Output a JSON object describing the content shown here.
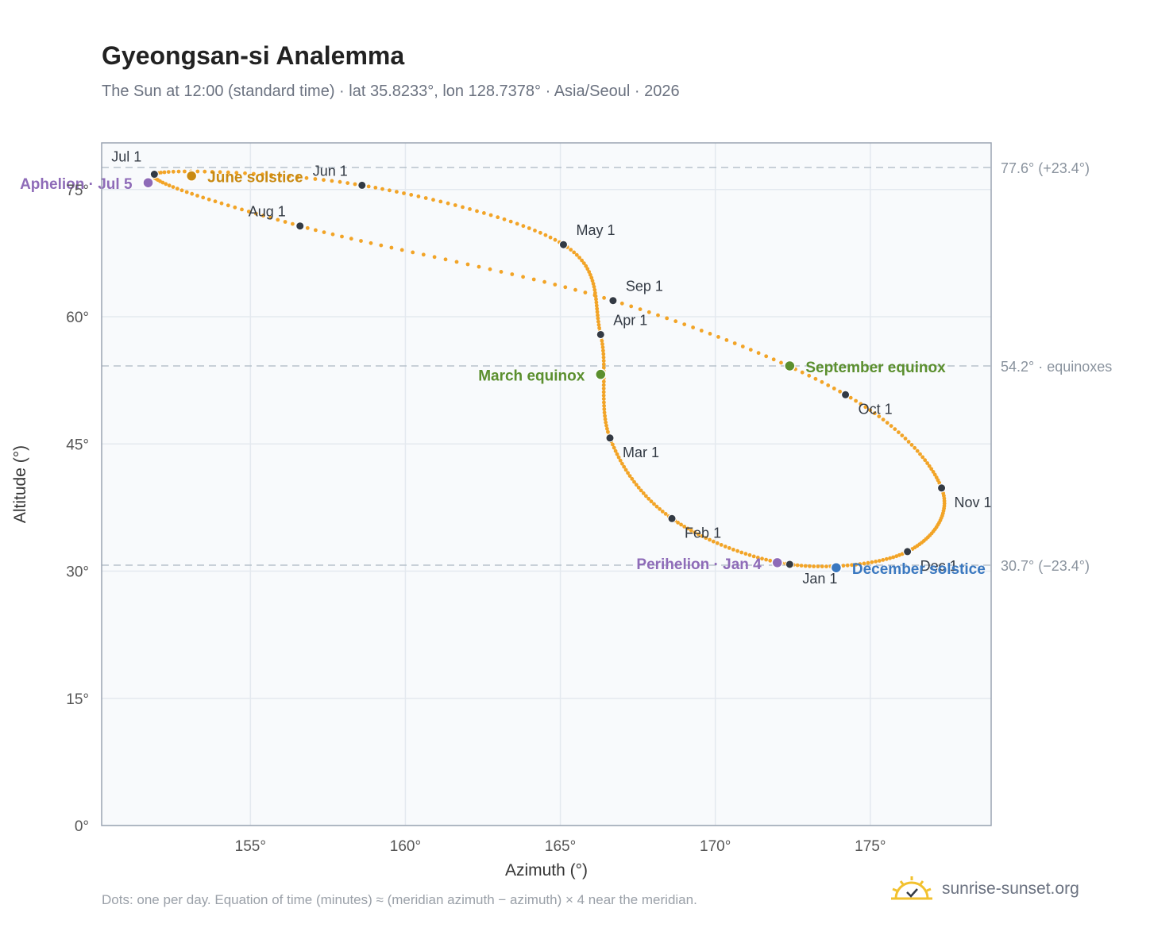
{
  "title": "Gyeongsan-si Analemma",
  "subtitle": "The Sun at 12:00 (standard time) · lat 35.8233°, lon 128.7378° · Asia/Seoul · 2026",
  "footnote": "Dots: one per day. Equation of time (minutes) ≈ (meridian azimuth − azimuth) × 4 near the meridian.",
  "brand": {
    "name": "sunrise-sunset.org",
    "icon": "sun-logo-icon"
  },
  "colors": {
    "curve": "#f2a427",
    "month_marker": "#333a44",
    "equinox": "#5b8f2e",
    "june_solstice": "#c98a12",
    "december_solstice": "#3a78c0",
    "apsides": "#8e6bb8",
    "reference_line": "#b7c2cc",
    "plot_background": "#f8fafc",
    "grid": "#e4e9ef",
    "axis_border": "#9aa4b2"
  },
  "chart_data": {
    "type": "scatter",
    "xlabel": "Azimuth (°)",
    "ylabel": "Altitude (°)",
    "xlim": [
      150.2,
      178.9
    ],
    "ylim": [
      0,
      80.5
    ],
    "xticks": [
      "155°",
      "160°",
      "165°",
      "170°",
      "175°"
    ],
    "xtick_values": [
      155,
      160,
      165,
      170,
      175
    ],
    "yticks": [
      "0°",
      "15°",
      "30°",
      "45°",
      "60°",
      "75°"
    ],
    "ytick_values": [
      0,
      15,
      30,
      45,
      60,
      75
    ],
    "grid": true,
    "monthly_points": [
      {
        "label": "Jan 1",
        "date": "2026-01-01",
        "azimuth": 172.4,
        "altitude": 30.8
      },
      {
        "label": "Feb 1",
        "date": "2026-02-01",
        "azimuth": 168.6,
        "altitude": 36.2
      },
      {
        "label": "Mar 1",
        "date": "2026-03-01",
        "azimuth": 166.6,
        "altitude": 45.7
      },
      {
        "label": "Apr 1",
        "date": "2026-04-01",
        "azimuth": 166.3,
        "altitude": 57.9
      },
      {
        "label": "May 1",
        "date": "2026-05-01",
        "azimuth": 165.1,
        "altitude": 68.5
      },
      {
        "label": "Jun 1",
        "date": "2026-06-01",
        "azimuth": 158.6,
        "altitude": 75.5
      },
      {
        "label": "Jul 1",
        "date": "2026-07-01",
        "azimuth": 151.9,
        "altitude": 76.8
      },
      {
        "label": "Aug 1",
        "date": "2026-08-01",
        "azimuth": 156.6,
        "altitude": 70.7
      },
      {
        "label": "Sep 1",
        "date": "2026-09-01",
        "azimuth": 166.7,
        "altitude": 61.9
      },
      {
        "label": "Oct 1",
        "date": "2026-10-01",
        "azimuth": 174.2,
        "altitude": 50.8
      },
      {
        "label": "Nov 1",
        "date": "2026-11-01",
        "azimuth": 177.3,
        "altitude": 39.8
      },
      {
        "label": "Dec 1",
        "date": "2026-12-01",
        "azimuth": 176.2,
        "altitude": 32.3
      }
    ],
    "events": [
      {
        "label": "March equinox",
        "date": "2026-03-20",
        "azimuth": 166.3,
        "altitude": 53.2,
        "color_key": "equinox"
      },
      {
        "label": "June solstice",
        "date": "2026-06-21",
        "azimuth": 153.1,
        "altitude": 76.6,
        "color_key": "june_solstice"
      },
      {
        "label": "Aphelion · Jul 5",
        "date": "2026-07-05",
        "azimuth": 151.7,
        "altitude": 75.8,
        "color_key": "apsides"
      },
      {
        "label": "September equinox",
        "date": "2026-09-23",
        "azimuth": 172.4,
        "altitude": 54.2,
        "color_key": "equinox"
      },
      {
        "label": "December solstice",
        "date": "2026-12-21",
        "azimuth": 173.9,
        "altitude": 30.4,
        "color_key": "december_solstice"
      },
      {
        "label": "Perihelion · Jan 4",
        "date": "2026-01-04",
        "azimuth": 172.0,
        "altitude": 31.0,
        "color_key": "apsides"
      }
    ],
    "reference_lines": [
      {
        "altitude": 77.6,
        "label": "77.6° (+23.4°)"
      },
      {
        "altitude": 54.2,
        "label": "54.2° · equinoxes"
      },
      {
        "altitude": 30.7,
        "label": "30.7° (−23.4°)"
      }
    ]
  }
}
